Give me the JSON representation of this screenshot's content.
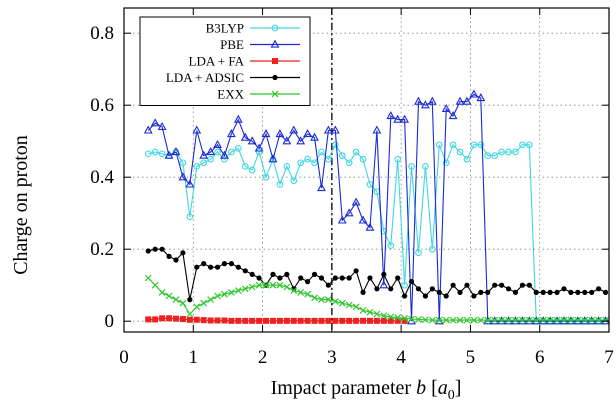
{
  "chart_data": {
    "type": "line",
    "xlabel_prefix": "Impact parameter ",
    "xlabel_var": "b",
    "xlabel_unit_open": " [",
    "xlabel_unit_var": "a",
    "xlabel_unit_sub": "0",
    "xlabel_unit_close": "]",
    "ylabel": "Charge on proton",
    "xlim": [
      0,
      7
    ],
    "ylim": [
      -0.03,
      0.87
    ],
    "xticks": [
      0,
      1,
      2,
      3,
      4,
      5,
      6,
      7
    ],
    "xtick_labels": [
      "0",
      "1",
      "2",
      "3",
      "4",
      "5",
      "6",
      "7"
    ],
    "yticks": [
      0,
      0.2,
      0.4,
      0.6,
      0.8
    ],
    "ytick_labels": [
      "0",
      "0.2",
      "0.4",
      "0.6",
      "0.8"
    ],
    "grid": true,
    "vertical_line_x": 3,
    "legend_position": "top-left",
    "series": [
      {
        "name": "B3LYP",
        "color": "#40d8e0",
        "marker": "circle",
        "x": [
          0.35,
          0.45,
          0.55,
          0.65,
          0.75,
          0.85,
          0.95,
          1.05,
          1.15,
          1.25,
          1.35,
          1.45,
          1.55,
          1.65,
          1.75,
          1.85,
          1.95,
          2.05,
          2.15,
          2.25,
          2.35,
          2.45,
          2.55,
          2.65,
          2.75,
          2.85,
          2.95,
          3.05,
          3.15,
          3.25,
          3.35,
          3.45,
          3.55,
          3.65,
          3.75,
          3.85,
          3.95,
          4.05,
          4.15,
          4.25,
          4.35,
          4.45,
          4.55,
          4.65,
          4.75,
          4.85,
          4.95,
          5.05,
          5.15,
          5.25,
          5.35,
          5.45,
          5.55,
          5.65,
          5.75,
          5.85,
          5.95,
          6.05,
          6.15,
          6.25,
          6.35,
          6.45,
          6.55,
          6.65,
          6.75,
          6.85,
          6.95
        ],
        "values": [
          0.465,
          0.47,
          0.465,
          0.46,
          0.47,
          0.44,
          0.29,
          0.43,
          0.44,
          0.45,
          0.47,
          0.45,
          0.47,
          0.48,
          0.43,
          0.42,
          0.47,
          0.4,
          0.45,
          0.38,
          0.43,
          0.39,
          0.44,
          0.45,
          0.44,
          0.47,
          0.45,
          0.49,
          0.46,
          0.44,
          0.47,
          0.45,
          0.38,
          0.36,
          0.25,
          0.21,
          0.45,
          0.1,
          0.43,
          0.19,
          0.43,
          0.2,
          0.49,
          0.44,
          0.49,
          0.47,
          0.45,
          0.49,
          0.49,
          0.46,
          0.46,
          0.47,
          0.47,
          0.47,
          0.49,
          0.49,
          0.0,
          0.0,
          0.0,
          0.0,
          0.0,
          0.0,
          0.0,
          0.0,
          0.0,
          0.0,
          0.0
        ]
      },
      {
        "name": "PBE",
        "color": "#1c2bd4",
        "marker": "triangle",
        "x": [
          0.35,
          0.45,
          0.55,
          0.65,
          0.75,
          0.85,
          0.95,
          1.05,
          1.15,
          1.25,
          1.35,
          1.45,
          1.55,
          1.65,
          1.75,
          1.85,
          1.95,
          2.05,
          2.15,
          2.25,
          2.35,
          2.45,
          2.55,
          2.65,
          2.75,
          2.85,
          2.95,
          3.05,
          3.15,
          3.25,
          3.35,
          3.45,
          3.55,
          3.65,
          3.75,
          3.85,
          3.95,
          4.05,
          4.15,
          4.25,
          4.35,
          4.45,
          4.55,
          4.65,
          4.75,
          4.85,
          4.95,
          5.05,
          5.15,
          5.25,
          5.35,
          5.45,
          5.55,
          5.65,
          5.75,
          5.85,
          5.95,
          6.05,
          6.15,
          6.25,
          6.35,
          6.45,
          6.55,
          6.65,
          6.75,
          6.85,
          6.95
        ],
        "values": [
          0.53,
          0.55,
          0.54,
          0.46,
          0.47,
          0.4,
          0.38,
          0.53,
          0.46,
          0.47,
          0.49,
          0.46,
          0.52,
          0.56,
          0.51,
          0.5,
          0.48,
          0.52,
          0.45,
          0.52,
          0.5,
          0.53,
          0.5,
          0.52,
          0.51,
          0.37,
          0.53,
          0.53,
          0.28,
          0.3,
          0.33,
          0.28,
          0.26,
          0.53,
          0.1,
          0.57,
          0.56,
          0.56,
          0.0,
          0.61,
          0.6,
          0.61,
          0.0,
          0.59,
          0.57,
          0.61,
          0.61,
          0.63,
          0.62,
          0.0,
          0.0,
          0.0,
          0.0,
          0.0,
          0.0,
          0.0,
          0.0,
          0.0,
          0.0,
          0.0,
          0.0,
          0.0,
          0.0,
          0.0,
          0.0,
          0.0,
          0.0
        ]
      },
      {
        "name": "LDA + FA",
        "color": "#ee2020",
        "marker": "square",
        "x": [
          0.35,
          0.45,
          0.55,
          0.65,
          0.75,
          0.85,
          0.95,
          1.05,
          1.15,
          1.25,
          1.35,
          1.45,
          1.55,
          1.65,
          1.75,
          1.85,
          1.95,
          2.05,
          2.15,
          2.25,
          2.35,
          2.45,
          2.55,
          2.65,
          2.75,
          2.85,
          2.95,
          3.05,
          3.15,
          3.25,
          3.35,
          3.45,
          3.55,
          3.65,
          3.75,
          3.85,
          3.95,
          4.05
        ],
        "values": [
          0.005,
          0.005,
          0.008,
          0.008,
          0.007,
          0.006,
          0.004,
          0.004,
          0.003,
          0.002,
          0.002,
          0.002,
          0.001,
          0.001,
          0.001,
          0.001,
          0.001,
          0.001,
          0.001,
          0.001,
          0.001,
          0.001,
          0.001,
          0.001,
          0.001,
          0.001,
          0.001,
          0.001,
          0.001,
          0.001,
          0.001,
          0.001,
          0.001,
          0.001,
          0.001,
          0.001,
          0.001,
          0.001
        ]
      },
      {
        "name": "LDA + ADSIC",
        "color": "#000000",
        "marker": "dot",
        "x": [
          0.35,
          0.45,
          0.55,
          0.65,
          0.75,
          0.85,
          0.95,
          1.05,
          1.15,
          1.25,
          1.35,
          1.45,
          1.55,
          1.65,
          1.75,
          1.85,
          1.95,
          2.05,
          2.15,
          2.25,
          2.35,
          2.45,
          2.55,
          2.65,
          2.75,
          2.85,
          2.95,
          3.05,
          3.15,
          3.25,
          3.35,
          3.45,
          3.55,
          3.65,
          3.75,
          3.85,
          3.95,
          4.05,
          4.15,
          4.25,
          4.35,
          4.45,
          4.55,
          4.65,
          4.75,
          4.85,
          4.95,
          5.05,
          5.15,
          5.25,
          5.35,
          5.45,
          5.55,
          5.65,
          5.75,
          5.85,
          5.95,
          6.05,
          6.15,
          6.25,
          6.35,
          6.45,
          6.55,
          6.65,
          6.75,
          6.85,
          6.95
        ],
        "values": [
          0.195,
          0.2,
          0.2,
          0.18,
          0.17,
          0.19,
          0.06,
          0.15,
          0.16,
          0.15,
          0.15,
          0.16,
          0.16,
          0.15,
          0.14,
          0.13,
          0.12,
          0.1,
          0.13,
          0.12,
          0.13,
          0.09,
          0.12,
          0.11,
          0.13,
          0.12,
          0.1,
          0.12,
          0.12,
          0.12,
          0.14,
          0.08,
          0.12,
          0.09,
          0.13,
          0.09,
          0.12,
          0.07,
          0.11,
          0.09,
          0.07,
          0.09,
          0.08,
          0.07,
          0.1,
          0.08,
          0.1,
          0.07,
          0.08,
          0.08,
          0.1,
          0.1,
          0.09,
          0.08,
          0.1,
          0.1,
          0.08,
          0.08,
          0.08,
          0.08,
          0.09,
          0.08,
          0.08,
          0.08,
          0.08,
          0.09,
          0.08
        ]
      },
      {
        "name": "EXX",
        "color": "#2ec82e",
        "marker": "x",
        "x": [
          0.35,
          0.45,
          0.55,
          0.65,
          0.75,
          0.85,
          0.95,
          1.05,
          1.15,
          1.25,
          1.35,
          1.45,
          1.55,
          1.65,
          1.75,
          1.85,
          1.95,
          2.05,
          2.15,
          2.25,
          2.35,
          2.45,
          2.55,
          2.65,
          2.75,
          2.85,
          2.95,
          3.05,
          3.15,
          3.25,
          3.35,
          3.45,
          3.55,
          3.65,
          3.75,
          3.85,
          3.95,
          4.05,
          4.15,
          4.25,
          4.35,
          4.45,
          4.55,
          4.65,
          4.75,
          4.85,
          4.95,
          5.05,
          5.15,
          5.25,
          5.35,
          5.45,
          5.55,
          5.65,
          5.75,
          5.85,
          5.95,
          6.05,
          6.15,
          6.25,
          6.35,
          6.45,
          6.55,
          6.65,
          6.75,
          6.85,
          6.95
        ],
        "values": [
          0.12,
          0.1,
          0.08,
          0.07,
          0.06,
          0.05,
          0.02,
          0.04,
          0.05,
          0.06,
          0.07,
          0.075,
          0.08,
          0.085,
          0.09,
          0.095,
          0.1,
          0.1,
          0.1,
          0.1,
          0.095,
          0.085,
          0.08,
          0.075,
          0.065,
          0.06,
          0.06,
          0.055,
          0.05,
          0.045,
          0.04,
          0.03,
          0.025,
          0.02,
          0.015,
          0.012,
          0.01,
          0.008,
          0.006,
          0.005,
          0.004,
          0.003,
          0.003,
          0.003,
          0.003,
          0.003,
          0.003,
          0.003,
          0.003,
          0.003,
          0.003,
          0.003,
          0.003,
          0.003,
          0.003,
          0.003,
          0.003,
          0.003,
          0.003,
          0.003,
          0.003,
          0.003,
          0.003,
          0.003,
          0.003,
          0.003,
          0.003
        ]
      }
    ]
  }
}
